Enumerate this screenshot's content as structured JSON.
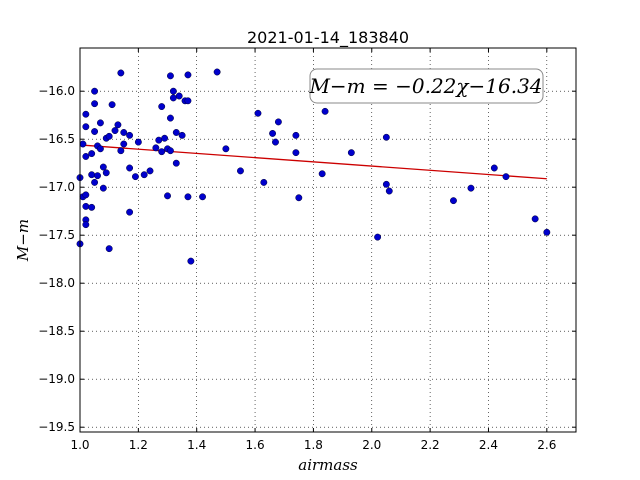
{
  "chart_data": {
    "type": "scatter",
    "title": "2021-01-14_183840",
    "xlabel": "airmass",
    "ylabel": "M−m",
    "xlim": [
      1.0,
      2.7
    ],
    "ylim": [
      -19.55,
      -15.55
    ],
    "y_inverted": true,
    "grid": true,
    "x_ticks": [
      "1.0",
      "1.2",
      "1.4",
      "1.6",
      "1.8",
      "2.0",
      "2.2",
      "2.4",
      "2.6"
    ],
    "y_ticks": [
      "−16.0",
      "−16.5",
      "−17.0",
      "−17.5",
      "−18.0",
      "−18.5",
      "−19.0",
      "−19.5"
    ],
    "annotation": "M−m = −0.22χ−16.34",
    "point_color": "#0000cc",
    "fit_color": "#cc0000",
    "fit": {
      "slope": -0.22,
      "intercept": -16.34,
      "x_range": [
        1.0,
        2.6
      ]
    },
    "points": [
      [
        1.0,
        -16.9
      ],
      [
        1.0,
        -17.59
      ],
      [
        1.01,
        -16.55
      ],
      [
        1.01,
        -17.1
      ],
      [
        1.02,
        -16.24
      ],
      [
        1.02,
        -16.37
      ],
      [
        1.02,
        -16.68
      ],
      [
        1.02,
        -17.08
      ],
      [
        1.02,
        -17.2
      ],
      [
        1.02,
        -17.34
      ],
      [
        1.02,
        -17.39
      ],
      [
        1.04,
        -16.65
      ],
      [
        1.04,
        -16.87
      ],
      [
        1.04,
        -17.21
      ],
      [
        1.05,
        -16.0
      ],
      [
        1.05,
        -16.13
      ],
      [
        1.05,
        -16.42
      ],
      [
        1.05,
        -16.95
      ],
      [
        1.06,
        -16.57
      ],
      [
        1.06,
        -16.88
      ],
      [
        1.07,
        -16.33
      ],
      [
        1.07,
        -16.6
      ],
      [
        1.08,
        -16.79
      ],
      [
        1.08,
        -17.01
      ],
      [
        1.09,
        -16.49
      ],
      [
        1.09,
        -16.85
      ],
      [
        1.1,
        -16.47
      ],
      [
        1.1,
        -17.64
      ],
      [
        1.11,
        -16.14
      ],
      [
        1.12,
        -16.41
      ],
      [
        1.13,
        -16.35
      ],
      [
        1.14,
        -16.62
      ],
      [
        1.14,
        -15.81
      ],
      [
        1.15,
        -16.55
      ],
      [
        1.15,
        -16.43
      ],
      [
        1.17,
        -17.26
      ],
      [
        1.17,
        -16.8
      ],
      [
        1.17,
        -16.46
      ],
      [
        1.19,
        -16.89
      ],
      [
        1.2,
        -16.53
      ],
      [
        1.22,
        -16.87
      ],
      [
        1.24,
        -16.83
      ],
      [
        1.26,
        -16.59
      ],
      [
        1.27,
        -16.51
      ],
      [
        1.28,
        -16.16
      ],
      [
        1.28,
        -16.63
      ],
      [
        1.29,
        -16.49
      ],
      [
        1.3,
        -17.09
      ],
      [
        1.3,
        -16.6
      ],
      [
        1.31,
        -16.62
      ],
      [
        1.31,
        -16.28
      ],
      [
        1.31,
        -15.84
      ],
      [
        1.32,
        -16.07
      ],
      [
        1.32,
        -16.0
      ],
      [
        1.33,
        -16.75
      ],
      [
        1.33,
        -16.43
      ],
      [
        1.34,
        -16.05
      ],
      [
        1.35,
        -16.46
      ],
      [
        1.36,
        -16.1
      ],
      [
        1.37,
        -16.1
      ],
      [
        1.37,
        -15.83
      ],
      [
        1.37,
        -17.1
      ],
      [
        1.38,
        -17.77
      ],
      [
        1.42,
        -17.1
      ],
      [
        1.47,
        -15.8
      ],
      [
        1.5,
        -16.6
      ],
      [
        1.55,
        -16.83
      ],
      [
        1.61,
        -16.23
      ],
      [
        1.63,
        -16.95
      ],
      [
        1.66,
        -16.44
      ],
      [
        1.67,
        -16.53
      ],
      [
        1.68,
        -16.32
      ],
      [
        1.74,
        -16.64
      ],
      [
        1.74,
        -16.46
      ],
      [
        1.75,
        -17.11
      ],
      [
        1.83,
        -16.86
      ],
      [
        1.84,
        -16.21
      ],
      [
        1.93,
        -16.64
      ],
      [
        2.02,
        -17.52
      ],
      [
        2.05,
        -16.48
      ],
      [
        2.05,
        -16.97
      ],
      [
        2.06,
        -17.04
      ],
      [
        2.28,
        -17.14
      ],
      [
        2.34,
        -17.01
      ],
      [
        2.42,
        -16.8
      ],
      [
        2.46,
        -16.89
      ],
      [
        2.56,
        -17.33
      ],
      [
        2.6,
        -17.47
      ]
    ]
  }
}
